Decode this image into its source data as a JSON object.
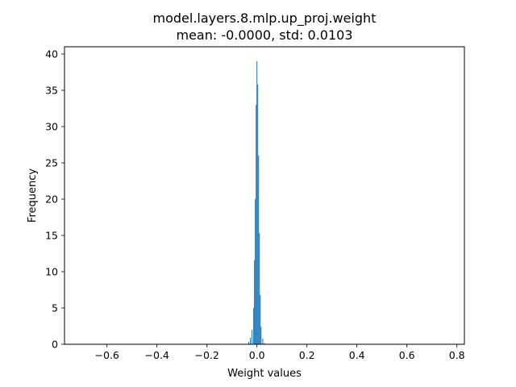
{
  "chart_data": {
    "type": "bar",
    "title": "model.layers.8.mlp.up_proj.weight",
    "subtitle": "mean: -0.0000, std: 0.0103",
    "xlabel": "Weight values",
    "ylabel": "Frequency",
    "xlim": [
      -0.77,
      0.83
    ],
    "ylim": [
      0,
      41
    ],
    "xticks": [
      -0.6,
      -0.4,
      -0.2,
      0.0,
      0.2,
      0.4,
      0.6,
      0.8
    ],
    "xtick_labels": [
      "−0.6",
      "−0.4",
      "−0.2",
      "0.0",
      "0.2",
      "0.4",
      "0.6",
      "0.8"
    ],
    "yticks": [
      0,
      5,
      10,
      15,
      20,
      25,
      30,
      35,
      40
    ],
    "ytick_labels": [
      "0",
      "5",
      "10",
      "15",
      "20",
      "25",
      "30",
      "35",
      "40"
    ],
    "grid": false,
    "bar_color": "#1f77b4",
    "bins": [
      {
        "x": -0.033,
        "y": 0.3
      },
      {
        "x": -0.0264,
        "y": 0.9
      },
      {
        "x": -0.0198,
        "y": 2.0
      },
      {
        "x": -0.0132,
        "y": 5.0
      },
      {
        "x": -0.0099,
        "y": 11.6
      },
      {
        "x": -0.0066,
        "y": 20.0
      },
      {
        "x": -0.0033,
        "y": 33.0
      },
      {
        "x": 0.0,
        "y": 39.0
      },
      {
        "x": 0.0033,
        "y": 35.8
      },
      {
        "x": 0.0066,
        "y": 26.0
      },
      {
        "x": 0.0099,
        "y": 15.3
      },
      {
        "x": 0.0132,
        "y": 6.8
      },
      {
        "x": 0.0165,
        "y": 2.4
      },
      {
        "x": 0.0231,
        "y": 0.8
      },
      {
        "x": 0.0297,
        "y": 0.2
      }
    ]
  }
}
